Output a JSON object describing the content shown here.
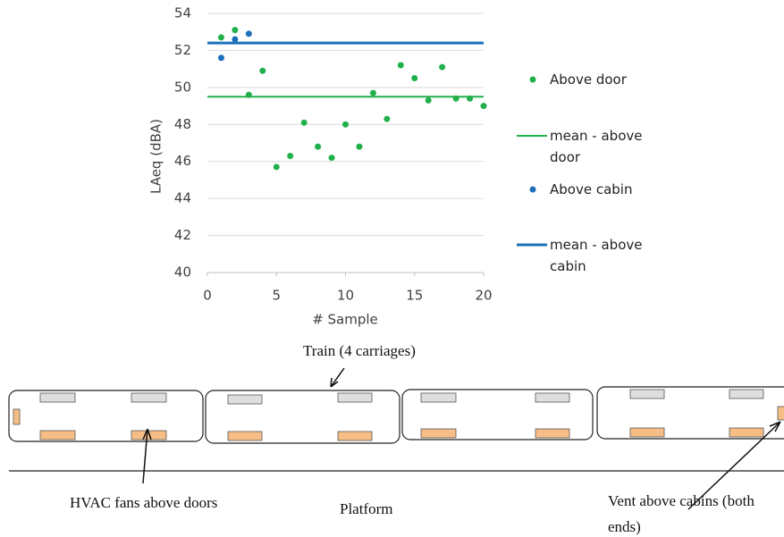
{
  "chart_data": {
    "type": "scatter",
    "xlabel": "# Sample",
    "ylabel": "LAeq (dBA)",
    "xlim": [
      0,
      20
    ],
    "xticks": [
      0,
      5,
      10,
      15,
      20
    ],
    "ylim": [
      40,
      54
    ],
    "yticks": [
      40,
      42,
      44,
      46,
      48,
      50,
      52,
      54
    ],
    "grid": true,
    "legend": "right",
    "series": [
      {
        "name": "Above door",
        "type": "scatter",
        "color": "#21b04b",
        "x": [
          1,
          2,
          3,
          4,
          5,
          6,
          7,
          8,
          9,
          10,
          11,
          12,
          13,
          14,
          15,
          16,
          17,
          18,
          19,
          20
        ],
        "values": [
          52.7,
          53.1,
          49.6,
          50.9,
          45.7,
          46.3,
          48.1,
          46.8,
          46.2,
          48.0,
          46.8,
          49.7,
          48.3,
          51.2,
          50.5,
          49.3,
          51.1,
          49.4,
          49.4,
          49.0
        ]
      },
      {
        "name": "mean - above door",
        "type": "line",
        "color": "#21b04b",
        "x": [
          0,
          20
        ],
        "values": [
          49.5,
          49.5
        ]
      },
      {
        "name": "Above cabin",
        "type": "scatter",
        "color": "#1e6fba",
        "x": [
          1,
          2,
          3
        ],
        "values": [
          51.6,
          52.6,
          52.9
        ]
      },
      {
        "name": "mean - above cabin",
        "type": "line",
        "color": "#1e6fba",
        "x": [
          0,
          20
        ],
        "values": [
          52.4,
          52.4
        ]
      }
    ]
  },
  "diagram": {
    "train_label": "Train (4 carriages)",
    "hvac_label": "HVAC fans above doors",
    "platform_label": "Platform",
    "vent_label": "Vent above cabins (both ends)"
  }
}
